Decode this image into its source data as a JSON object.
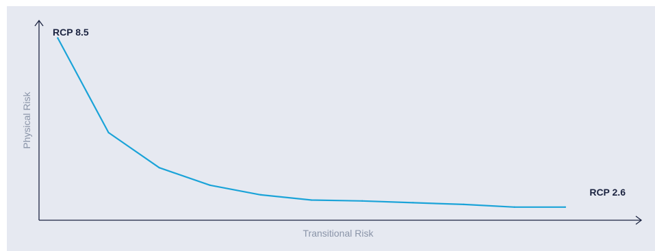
{
  "chart_data": {
    "type": "line",
    "xlabel": "Transitional Risk",
    "ylabel": "Physical Risk",
    "annotations": {
      "start": "RCP 8.5",
      "end": "RCP 2.6"
    },
    "x": [
      0,
      1,
      2,
      3,
      4,
      5,
      6,
      7,
      8,
      9,
      10
    ],
    "y": [
      100,
      46,
      26,
      16,
      10.5,
      7.5,
      7,
      6,
      5,
      3.5,
      3.5
    ],
    "xlim": [
      -0.37,
      11.5
    ],
    "ylim": [
      -4,
      110
    ],
    "grid": false,
    "legend": "none",
    "line_color": "#1aa3d8",
    "axis_color": "#1b2340"
  }
}
